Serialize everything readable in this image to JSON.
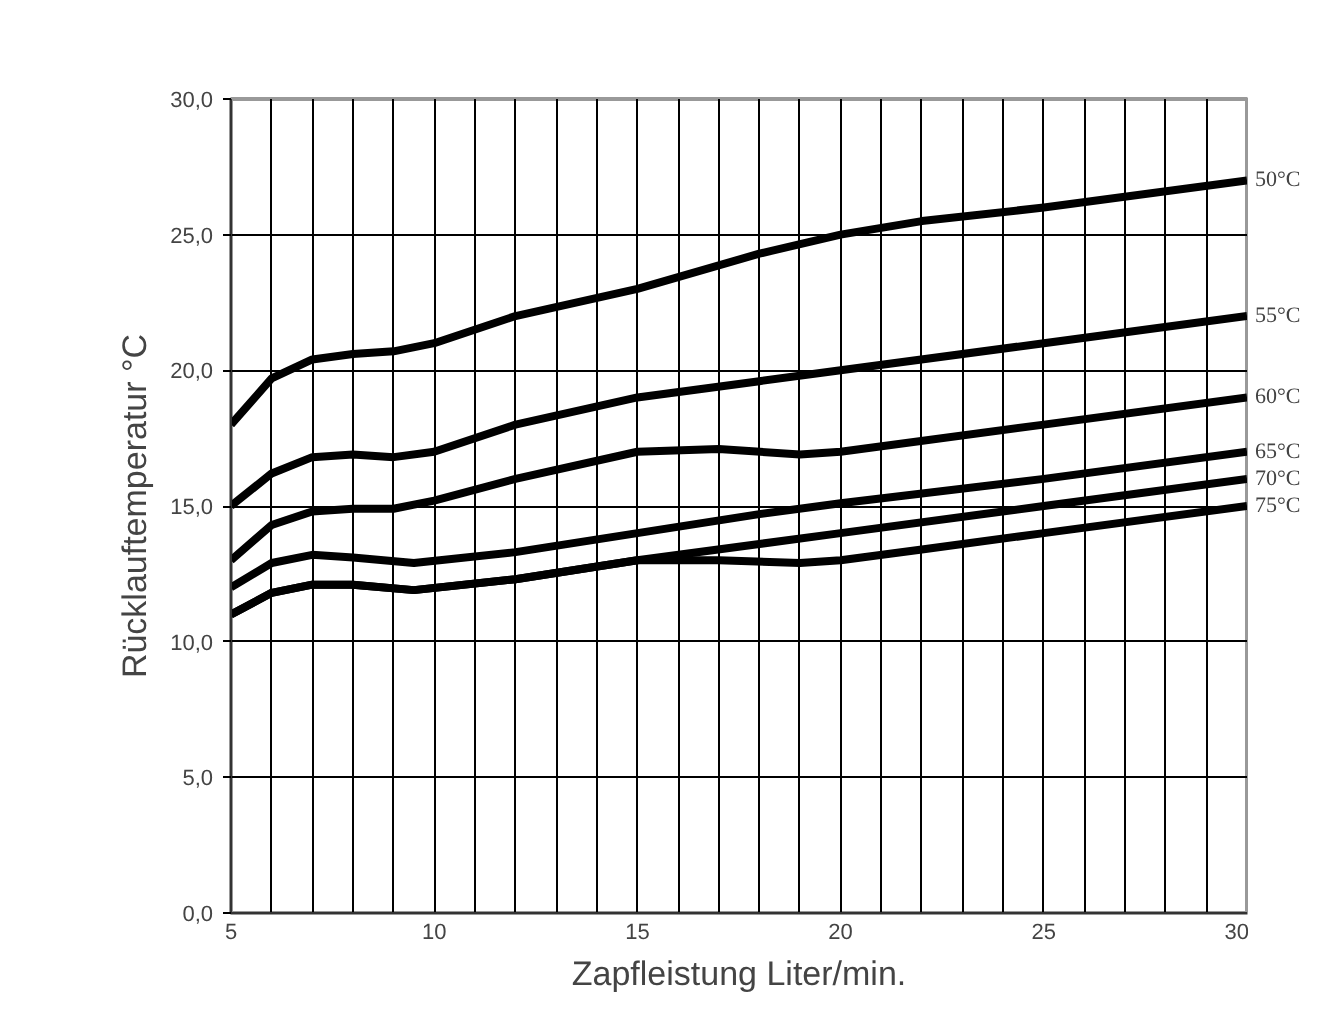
{
  "chart_data": {
    "type": "line",
    "xlabel": "Zapfleistung Liter/min.",
    "ylabel": "Rücklauftemperatur °C",
    "xlim": [
      5,
      30
    ],
    "ylim": [
      0,
      30
    ],
    "xticks": [
      5,
      {
        "value": 6,
        "label": null
      },
      {
        "value": 7,
        "label": null
      },
      {
        "value": 8,
        "label": null
      },
      {
        "value": 9,
        "label": null
      },
      10,
      {
        "value": 11,
        "label": null
      },
      {
        "value": 12,
        "label": null
      },
      {
        "value": 13,
        "label": null
      },
      {
        "value": 14,
        "label": null
      },
      15,
      {
        "value": 16,
        "label": null
      },
      {
        "value": 17,
        "label": null
      },
      {
        "value": 18,
        "label": null
      },
      {
        "value": 19,
        "label": null
      },
      20,
      {
        "value": 21,
        "label": null
      },
      {
        "value": 22,
        "label": null
      },
      {
        "value": 23,
        "label": null
      },
      {
        "value": 24,
        "label": null
      },
      25,
      {
        "value": 26,
        "label": null
      },
      {
        "value": 27,
        "label": null
      },
      {
        "value": 28,
        "label": null
      },
      {
        "value": 29,
        "label": null
      },
      30
    ],
    "yticks": [
      {
        "value": 0,
        "label": "0,0"
      },
      {
        "value": 5,
        "label": "5,0"
      },
      {
        "value": 10,
        "label": "10,0"
      },
      {
        "value": 15,
        "label": "15,0"
      },
      {
        "value": 20,
        "label": "20,0"
      },
      {
        "value": 25,
        "label": "25,0"
      },
      {
        "value": 30,
        "label": "30,0"
      }
    ],
    "grid": true,
    "marker": "none",
    "line_style": "solid",
    "series": [
      {
        "name": "50°C",
        "color": "#000000",
        "x": [
          5,
          6,
          7,
          8,
          9,
          10,
          12,
          15,
          18,
          20,
          22,
          25,
          30
        ],
        "values": [
          18,
          19.7,
          20.4,
          20.6,
          20.7,
          21,
          22,
          23,
          24.3,
          25,
          25.5,
          26,
          27
        ]
      },
      {
        "name": "55°C",
        "color": "#000000",
        "x": [
          5,
          6,
          7,
          8,
          9,
          10,
          12,
          15,
          18,
          20,
          25,
          30
        ],
        "values": [
          15,
          16.2,
          16.8,
          16.9,
          16.8,
          17,
          18,
          19,
          19.6,
          20,
          21,
          22
        ]
      },
      {
        "name": "60°C",
        "color": "#000000",
        "x": [
          5,
          6,
          7,
          8,
          9,
          10,
          12,
          15,
          17,
          19,
          20,
          25,
          30
        ],
        "values": [
          13,
          14.3,
          14.8,
          14.9,
          14.9,
          15.2,
          16,
          17,
          17.1,
          16.9,
          17,
          18,
          19
        ]
      },
      {
        "name": "65°C",
        "color": "#000000",
        "x": [
          5,
          6,
          7,
          8,
          9.5,
          12,
          15,
          18,
          20,
          25,
          30
        ],
        "values": [
          12,
          12.9,
          13.2,
          13.1,
          12.9,
          13.3,
          14,
          14.7,
          15.1,
          16,
          17
        ]
      },
      {
        "name": "70°C",
        "color": "#000000",
        "x": [
          5,
          6,
          7,
          8,
          9.5,
          12,
          15,
          18,
          20,
          25,
          30
        ],
        "values": [
          11,
          11.8,
          12.1,
          12.1,
          11.9,
          12.3,
          13,
          13.6,
          14,
          15,
          16
        ]
      },
      {
        "name": "75°C",
        "color": "#000000",
        "x": [
          5,
          6,
          7,
          8,
          9.5,
          12,
          15,
          17,
          19,
          20,
          22,
          25,
          30
        ],
        "values": [
          11,
          11.8,
          12.1,
          12.1,
          11.9,
          12.3,
          13,
          13,
          12.9,
          13,
          13.4,
          14,
          15
        ]
      }
    ]
  }
}
